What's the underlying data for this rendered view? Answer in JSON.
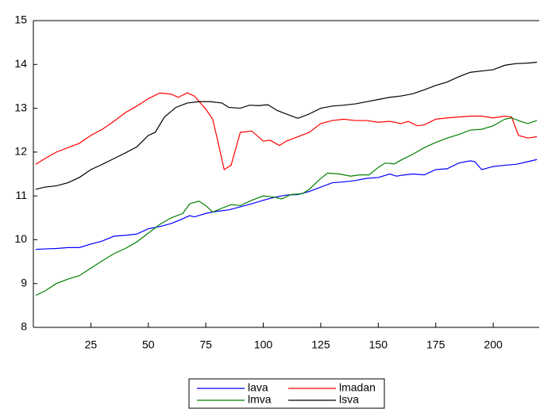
{
  "chart_data": {
    "type": "line",
    "xlim": [
      0,
      220
    ],
    "ylim": [
      8,
      15
    ],
    "xticks": [
      25,
      50,
      75,
      100,
      125,
      150,
      175,
      200
    ],
    "yticks": [
      8,
      9,
      10,
      11,
      12,
      13,
      14,
      15
    ],
    "series": [
      {
        "name": "lava",
        "color": "#0000ff",
        "x": [
          1,
          5,
          10,
          15,
          20,
          25,
          30,
          35,
          40,
          45,
          50,
          55,
          60,
          65,
          68,
          70,
          75,
          80,
          85,
          90,
          95,
          100,
          105,
          110,
          115,
          120,
          125,
          130,
          135,
          140,
          145,
          150,
          155,
          158,
          160,
          165,
          170,
          175,
          180,
          185,
          190,
          192,
          195,
          200,
          205,
          210,
          215,
          219
        ],
        "values": [
          9.78,
          9.79,
          9.8,
          9.82,
          9.82,
          9.9,
          9.97,
          10.08,
          10.1,
          10.13,
          10.25,
          10.3,
          10.37,
          10.48,
          10.55,
          10.52,
          10.6,
          10.65,
          10.68,
          10.75,
          10.82,
          10.9,
          10.97,
          11.02,
          11.03,
          11.1,
          11.2,
          11.3,
          11.32,
          11.35,
          11.4,
          11.42,
          11.5,
          11.45,
          11.47,
          11.5,
          11.48,
          11.6,
          11.62,
          11.75,
          11.8,
          11.78,
          11.6,
          11.67,
          11.7,
          11.72,
          11.78,
          11.83
        ]
      },
      {
        "name": "lmadan",
        "color": "#ff0000",
        "x": [
          1,
          5,
          10,
          15,
          20,
          25,
          30,
          35,
          40,
          45,
          50,
          55,
          60,
          63,
          67,
          70,
          75,
          78,
          80,
          83,
          86,
          90,
          95,
          100,
          103,
          107,
          110,
          115,
          120,
          125,
          130,
          135,
          140,
          145,
          150,
          155,
          160,
          163,
          167,
          170,
          175,
          180,
          185,
          190,
          195,
          200,
          205,
          208,
          211,
          215,
          219
        ],
        "values": [
          11.72,
          11.85,
          12.0,
          12.1,
          12.2,
          12.38,
          12.52,
          12.7,
          12.9,
          13.05,
          13.22,
          13.35,
          13.32,
          13.25,
          13.35,
          13.28,
          12.98,
          12.75,
          12.3,
          11.6,
          11.7,
          12.45,
          12.48,
          12.25,
          12.27,
          12.15,
          12.25,
          12.35,
          12.45,
          12.65,
          12.72,
          12.75,
          12.72,
          12.72,
          12.68,
          12.7,
          12.65,
          12.7,
          12.6,
          12.62,
          12.75,
          12.78,
          12.8,
          12.82,
          12.82,
          12.78,
          12.82,
          12.8,
          12.38,
          12.32,
          12.35
        ]
      },
      {
        "name": "lmva",
        "color": "#008000",
        "x": [
          1,
          5,
          10,
          15,
          20,
          25,
          30,
          35,
          40,
          45,
          50,
          55,
          60,
          65,
          68,
          72,
          75,
          78,
          82,
          86,
          90,
          95,
          100,
          105,
          108,
          112,
          117,
          120,
          125,
          128,
          133,
          138,
          142,
          146,
          150,
          153,
          157,
          160,
          165,
          170,
          175,
          180,
          185,
          190,
          195,
          200,
          205,
          208,
          212,
          215,
          219
        ],
        "values": [
          8.73,
          8.83,
          9.0,
          9.1,
          9.18,
          9.35,
          9.52,
          9.68,
          9.8,
          9.95,
          10.15,
          10.35,
          10.5,
          10.6,
          10.82,
          10.88,
          10.78,
          10.63,
          10.72,
          10.8,
          10.78,
          10.9,
          11.0,
          10.97,
          10.93,
          11.03,
          11.05,
          11.15,
          11.4,
          11.52,
          11.5,
          11.45,
          11.48,
          11.48,
          11.65,
          11.75,
          11.73,
          11.82,
          11.95,
          12.1,
          12.22,
          12.32,
          12.4,
          12.5,
          12.52,
          12.6,
          12.75,
          12.78,
          12.7,
          12.65,
          12.72
        ]
      },
      {
        "name": "lsva",
        "color": "#000000",
        "x": [
          1,
          5,
          10,
          15,
          20,
          25,
          30,
          35,
          40,
          45,
          50,
          53,
          57,
          62,
          67,
          72,
          77,
          82,
          85,
          90,
          94,
          98,
          102,
          106,
          110,
          115,
          120,
          125,
          130,
          135,
          140,
          145,
          150,
          155,
          160,
          165,
          170,
          175,
          180,
          185,
          190,
          195,
          200,
          205,
          210,
          215,
          219
        ],
        "values": [
          11.15,
          11.2,
          11.23,
          11.3,
          11.42,
          11.6,
          11.72,
          11.85,
          11.98,
          12.12,
          12.38,
          12.45,
          12.8,
          13.02,
          13.12,
          13.15,
          13.15,
          13.12,
          13.02,
          13.0,
          13.07,
          13.06,
          13.08,
          12.95,
          12.87,
          12.77,
          12.87,
          13.0,
          13.05,
          13.07,
          13.1,
          13.15,
          13.2,
          13.25,
          13.28,
          13.33,
          13.42,
          13.52,
          13.6,
          13.72,
          13.82,
          13.85,
          13.88,
          13.98,
          14.02,
          14.03,
          14.05
        ]
      }
    ]
  }
}
